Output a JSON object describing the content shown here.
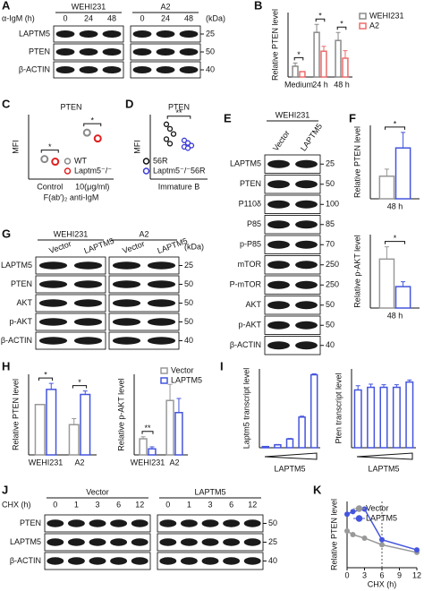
{
  "panel_labels": [
    "A",
    "B",
    "C",
    "D",
    "E",
    "F",
    "G",
    "H",
    "I",
    "J",
    "K"
  ],
  "blots": [
    {
      "treatment": "α-IgM (h)",
      "groups": [
        "WEHI231",
        "A2"
      ],
      "lanes": [
        "0",
        "24",
        "48",
        "0",
        "24",
        "48"
      ],
      "rows": [
        {
          "label": "LAPTM5",
          "kda": 25
        },
        {
          "label": "PTEN",
          "kda": 50
        },
        {
          "label": "β-ACTIN",
          "kda": 40
        }
      ],
      "unit": "(kDa)"
    },
    {
      "groups": [
        "WEHI231"
      ],
      "lanes": [
        "Vector",
        "LAPTM5"
      ],
      "rows": [
        {
          "label": "LAPTM5",
          "kda": 25
        },
        {
          "label": "PTEN",
          "kda": 50
        },
        {
          "label": "P110δ",
          "kda": 100
        },
        {
          "label": "P85",
          "kda": 85
        },
        {
          "label": "p-P85",
          "kda": 70
        },
        {
          "label": "mTOR",
          "kda": 250
        },
        {
          "label": "P-mTOR",
          "kda": 250
        },
        {
          "label": "AKT",
          "kda": 50
        },
        {
          "label": "p-AKT",
          "kda": 50
        },
        {
          "label": "β-ACTIN",
          "kda": 40
        }
      ]
    },
    {
      "groups": [
        "WEHI231",
        "A2"
      ],
      "lanes": [
        "Vector",
        "LAPTM5",
        "Vector",
        "LAPTM5"
      ],
      "rows": [
        {
          "label": "LAPTM5",
          "kda": 25
        },
        {
          "label": "PTEN",
          "kda": 50
        },
        {
          "label": "AKT",
          "kda": 50
        },
        {
          "label": "p-AKT",
          "kda": 50
        },
        {
          "label": "β-ACTIN",
          "kda": 40
        }
      ],
      "unit": "(kDa)"
    },
    {
      "treatment": "CHX (h)",
      "groups": [
        "Vector",
        "LAPTM5"
      ],
      "lanes": [
        "0",
        "1",
        "3",
        "6",
        "12",
        "0",
        "1",
        "3",
        "6",
        "12"
      ],
      "rows": [
        {
          "label": "PTEN",
          "kda": 50
        },
        {
          "label": "LAPTM5",
          "kda": 25
        },
        {
          "label": "β-ACTIN",
          "kda": 40
        }
      ]
    }
  ],
  "chart_data": [
    {
      "type": "bar",
      "ylabel": "Relative PTEN level",
      "categories": [
        "Medium",
        "24 h",
        "48 h"
      ],
      "ylim": [
        0,
        12
      ],
      "series": [
        {
          "name": "WEHI231",
          "color": "#8a8a8a",
          "values": [
            2,
            8.3,
            6.8
          ],
          "errors": [
            0.6,
            1.5,
            1.5
          ]
        },
        {
          "name": "A2",
          "color": "#ee6b6b",
          "values": [
            1,
            4.8,
            3.5
          ],
          "errors": [
            0,
            0.9,
            1.4
          ]
        }
      ],
      "significance": [
        "*",
        "*",
        "*"
      ]
    },
    {
      "type": "dot",
      "title": "PTEN",
      "ylabel": "MFI",
      "xlabel": "F(ab′)₂ anti-IgM",
      "categories": [
        "Control",
        "10(μg/ml)"
      ],
      "ylim": [
        0,
        1
      ],
      "series": [
        {
          "name": "WT",
          "color": "#8a8a8a",
          "values": [
            0.31,
            0.72
          ]
        },
        {
          "name": "Laptm5⁻/⁻",
          "color": "#e02020",
          "values": [
            0.27,
            0.63
          ]
        }
      ],
      "significance": [
        "*",
        "*"
      ]
    },
    {
      "type": "strip",
      "title": "PTEN",
      "ylabel": "MFI",
      "categories": [
        "Immature B"
      ],
      "ylim": [
        0,
        1
      ],
      "series": [
        {
          "name": "56R",
          "color": "#111111",
          "values": [
            0.85,
            0.78,
            0.7,
            0.62,
            0.55
          ]
        },
        {
          "name": "Laptm5⁻/⁻56R",
          "color": "#3a3ad8",
          "values": [
            0.6,
            0.56,
            0.52,
            0.5,
            0.48
          ]
        }
      ],
      "significance": [
        "**"
      ]
    },
    {
      "type": "bar",
      "ylabel": "Relative PTEN level",
      "categories": [
        "48 h"
      ],
      "ylim": [
        0,
        2.6
      ],
      "series": [
        {
          "name": "Vector",
          "color": "#999999",
          "values": [
            0.8
          ],
          "errors": [
            0.25
          ]
        },
        {
          "name": "LAPTM5",
          "color": "#4455dd",
          "values": [
            1.8
          ],
          "errors": [
            0.55
          ]
        }
      ],
      "significance": [
        "*"
      ]
    },
    {
      "type": "bar",
      "ylabel": "Relative p-AKT level",
      "categories": [
        "48 h"
      ],
      "ylim": [
        0,
        1.2
      ],
      "series": [
        {
          "name": "Vector",
          "color": "#999999",
          "values": [
            0.8
          ],
          "errors": [
            0.2
          ]
        },
        {
          "name": "LAPTM5",
          "color": "#4455dd",
          "values": [
            0.35
          ],
          "errors": [
            0.08
          ]
        }
      ],
      "significance": [
        "*"
      ]
    },
    {
      "type": "bar",
      "ylabel": "Relative PTEN level",
      "categories": [
        "WEHI231",
        "A2"
      ],
      "ylim": [
        0,
        1.6
      ],
      "series": [
        {
          "name": "Vector",
          "color": "#999999",
          "values": [
            1,
            0.6
          ],
          "errors": [
            0,
            0.12
          ]
        },
        {
          "name": "LAPTM5",
          "color": "#4455dd",
          "values": [
            1.3,
            1.2
          ],
          "errors": [
            0.12,
            0.07
          ]
        }
      ],
      "significance": [
        "*",
        "*"
      ]
    },
    {
      "type": "bar",
      "ylabel": "Relative p-AKT level",
      "categories": [
        "WEHI231",
        "A2"
      ],
      "ylim": [
        0,
        4
      ],
      "legend": true,
      "series": [
        {
          "name": "Vector",
          "color": "#999999",
          "values": [
            0.8,
            2.7
          ],
          "errors": [
            0.1,
            0.8
          ]
        },
        {
          "name": "LAPTM5",
          "color": "#4455dd",
          "values": [
            0.3,
            2.1
          ],
          "errors": [
            0.1,
            0.7
          ]
        }
      ],
      "significance": [
        "**",
        null
      ]
    },
    {
      "type": "bar",
      "ylabel": "Laptm5 transcript level",
      "xlabel": "LAPTM5",
      "categories": [
        null,
        null,
        null,
        null,
        null
      ],
      "ylim": [
        0,
        27
      ],
      "color": "#4455dd",
      "values": [
        0.4,
        1,
        3,
        10.5,
        25
      ],
      "errors": [
        0.05,
        0.1,
        0.2,
        0.3,
        0.3
      ]
    },
    {
      "type": "bar",
      "ylabel": "Pten transcript level",
      "xlabel": "LAPTM5",
      "categories": [
        null,
        null,
        null,
        null,
        null
      ],
      "ylim": [
        0,
        1.5
      ],
      "color": "#4455dd",
      "values": [
        1.1,
        1.15,
        1.15,
        1.15,
        1.25
      ],
      "errors": [
        0.08,
        0.06,
        0.05,
        0.05,
        0.04
      ]
    },
    {
      "type": "line",
      "ylabel": "Relative PTEN level",
      "xlabel": "CHX (h)",
      "x": [
        0,
        1,
        3,
        6,
        12
      ],
      "xlim": [
        0,
        12
      ],
      "xticks": [
        0,
        3,
        6,
        9,
        12
      ],
      "ylim": [
        0,
        1.3
      ],
      "vline": 6,
      "legend": true,
      "series": [
        {
          "name": "Vector",
          "color": "#999999",
          "values": [
            0.72,
            0.65,
            0.58,
            0.45,
            0.3
          ]
        },
        {
          "name": "LAPTM5",
          "color": "#4455dd",
          "values": [
            1.05,
            1.1,
            1.15,
            0.55,
            0.35
          ]
        }
      ]
    }
  ]
}
